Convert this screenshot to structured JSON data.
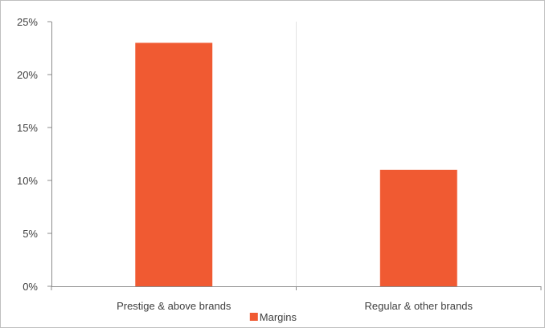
{
  "chart_data": {
    "type": "bar",
    "title": "",
    "xlabel": "",
    "ylabel": "",
    "categories": [
      "Prestige & above brands",
      "Regular & other brands"
    ],
    "series": [
      {
        "name": "Margins",
        "values": [
          0.23,
          0.11
        ]
      }
    ],
    "ylim": [
      0,
      0.25
    ],
    "yticks": [
      0,
      0.05,
      0.1,
      0.15,
      0.2,
      0.25
    ],
    "ytick_labels": [
      "0%",
      "5%",
      "10%",
      "15%",
      "20%",
      "25%"
    ],
    "grid": {
      "horizontal": false,
      "vertical_category_separators": true
    },
    "legend_position": "bottom",
    "colors": {
      "bar": "#F05A32",
      "axis": "#8c8c8c",
      "separator": "#e3e3e3",
      "text": "#404040"
    }
  }
}
